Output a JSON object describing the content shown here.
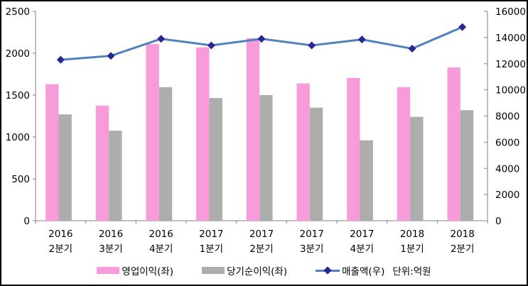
{
  "figure": {
    "background": "#FFFFFF",
    "border_color": "#000000"
  },
  "legend": {
    "items": [
      {
        "label": "영업이익(좌)",
        "type": "bar",
        "color": "#F79BDB"
      },
      {
        "label": "당기순이익(좌)",
        "type": "bar",
        "color": "#ADADAD"
      },
      {
        "label": "매출액(우)",
        "type": "line",
        "color": "#4F81BD",
        "marker_color": "#2B2493"
      }
    ],
    "unit_label": "단위:억원"
  },
  "chart_data": {
    "type": "bar",
    "subtype": "bar-line-combo",
    "title": "",
    "categories": [
      [
        "2016",
        "2분기"
      ],
      [
        "2016",
        "3분기"
      ],
      [
        "2016",
        "4분기"
      ],
      [
        "2017",
        "1분기"
      ],
      [
        "2017",
        "2분기"
      ],
      [
        "2017",
        "3분기"
      ],
      [
        "2017",
        "4분기"
      ],
      [
        "2018",
        "1분기"
      ],
      [
        "2018",
        "2분기"
      ]
    ],
    "series": [
      {
        "name": "영업이익(좌)",
        "type": "bar",
        "axis": "left",
        "color": "#F79BDB",
        "values": [
          1630,
          1375,
          2110,
          2070,
          2180,
          1640,
          1705,
          1595,
          1830
        ]
      },
      {
        "name": "당기순이익(좌)",
        "type": "bar",
        "axis": "left",
        "color": "#ADADAD",
        "values": [
          1270,
          1075,
          1595,
          1465,
          1500,
          1350,
          960,
          1240,
          1320
        ]
      },
      {
        "name": "매출액(우)",
        "type": "line",
        "axis": "right",
        "color": "#4F81BD",
        "marker": "diamond",
        "marker_color": "#2B2493",
        "values": [
          12300,
          12600,
          13900,
          13400,
          13900,
          13400,
          13850,
          13150,
          14800
        ]
      }
    ],
    "left_axis": {
      "min": 0,
      "max": 2500,
      "step": 500
    },
    "right_axis": {
      "min": 0,
      "max": 16000,
      "step": 2000
    },
    "axis_color": "#808080",
    "grid": false,
    "legend_position": "bottom",
    "unit_note": "단위:억원"
  }
}
